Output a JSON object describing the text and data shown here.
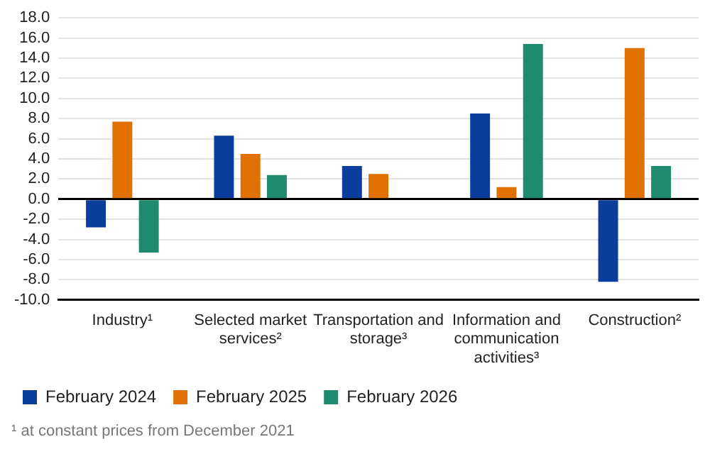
{
  "chart_data": {
    "type": "bar",
    "categories": [
      "Industry¹",
      "Selected market services²",
      "Transportation and storage³",
      "Information and communication activities³",
      "Construction²"
    ],
    "series": [
      {
        "name": "February 2024",
        "color": "#0b3d9c",
        "values": [
          -2.8,
          6.3,
          3.3,
          8.5,
          -8.2
        ]
      },
      {
        "name": "February 2025",
        "color": "#e07000",
        "values": [
          7.7,
          4.5,
          2.5,
          1.2,
          15.0
        ]
      },
      {
        "name": "February 2026",
        "color": "#1e8a6e",
        "values": [
          -5.3,
          2.4,
          null,
          15.4,
          3.3
        ]
      }
    ],
    "ylim": [
      -10,
      18
    ],
    "yticks": [
      {
        "value": -10,
        "label": "-10.0"
      },
      {
        "value": -8,
        "label": "-8.0"
      },
      {
        "value": -6,
        "label": "-6.0"
      },
      {
        "value": -4,
        "label": "-4.0"
      },
      {
        "value": -2,
        "label": "-2.0"
      },
      {
        "value": 0,
        "label": "0.0"
      },
      {
        "value": 2,
        "label": "2.0"
      },
      {
        "value": 4,
        "label": "4.0"
      },
      {
        "value": 6,
        "label": "6.0"
      },
      {
        "value": 8,
        "label": "8.0"
      },
      {
        "value": 10,
        "label": "10.0"
      },
      {
        "value": 12,
        "label": "12.0"
      },
      {
        "value": 14,
        "label": "14.0"
      },
      {
        "value": 16,
        "label": "16.0"
      },
      {
        "value": 18,
        "label": "18.0"
      }
    ],
    "grid": "y",
    "legend": "bottom left",
    "annotations": [
      "¹ at constant prices from December 2021"
    ]
  }
}
